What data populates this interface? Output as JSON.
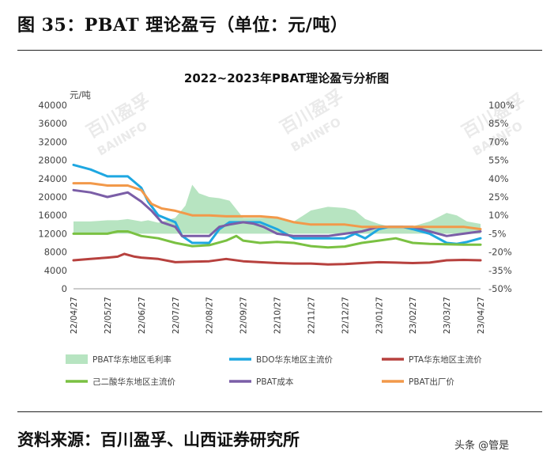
{
  "figure_title": "图 35：PBAT 理论盈亏（单位：元/吨）",
  "source": "资料来源：百川盈孚、山西证券研究所",
  "watermark_tag": "头条 @管是",
  "watermark_text": "百川盈孚",
  "watermark_text_en": "BAIINFO",
  "chart_data": {
    "type": "line",
    "title": "2022~2023年PBAT理论盈亏分析图",
    "ylabel_left": "元/吨",
    "ylim_left": [
      0,
      40000
    ],
    "yticks_left": [
      "0",
      "4000",
      "8000",
      "12000",
      "16000",
      "20000",
      "24000",
      "28000",
      "32000",
      "36000",
      "40000"
    ],
    "ylim_right": [
      -50,
      100
    ],
    "yticks_right": [
      "-50%",
      "-35%",
      "-20%",
      "-5%",
      "10%",
      "25%",
      "40%",
      "55%",
      "70%",
      "85%",
      "100%"
    ],
    "xticks": [
      "22/04/27",
      "22/05/27",
      "22/06/27",
      "22/07/27",
      "22/08/27",
      "22/09/27",
      "22/10/27",
      "22/11/27",
      "22/12/27",
      "23/01/27",
      "23/02/27",
      "23/03/27",
      "23/04/27"
    ],
    "x_range": [
      0,
      12
    ],
    "legend": [
      "PBAT华东地区毛利率",
      "BDO华东地区主流价",
      "PTA华东地区主流价",
      "己二酸华东地区主流价",
      "PBAT成本",
      "PBAT出厂价"
    ],
    "series": [
      {
        "name": "PBAT华东地区毛利率",
        "axis": "right",
        "kind": "area",
        "color": "#b7e4c1",
        "x": [
          0,
          0.5,
          1,
          1.3,
          1.6,
          2,
          2.2,
          2.5,
          3,
          3.3,
          3.5,
          3.7,
          4,
          4.3,
          4.6,
          5,
          5.5,
          6,
          6.5,
          7,
          7.5,
          8,
          8.3,
          8.6,
          9,
          9.3,
          9.7,
          10,
          10.5,
          11,
          11.3,
          11.6,
          12
        ],
        "values": [
          5,
          5,
          6,
          6,
          7,
          5,
          6,
          4,
          8,
          18,
          35,
          28,
          25,
          24,
          22,
          8,
          8,
          8,
          5,
          14,
          17,
          16,
          14,
          7,
          3,
          1,
          0,
          1,
          5,
          12,
          10,
          5,
          3
        ]
      },
      {
        "name": "BDO华东地区主流价",
        "axis": "left",
        "kind": "line",
        "color": "#1ea7e1",
        "x": [
          0,
          0.5,
          1,
          1.3,
          1.6,
          2,
          2.2,
          2.5,
          3,
          3.2,
          3.5,
          3.7,
          4,
          4.3,
          4.6,
          5,
          5.5,
          6,
          6.5,
          7,
          7.5,
          8,
          8.3,
          8.6,
          9,
          9.3,
          9.7,
          10,
          10.5,
          11,
          11.3,
          11.6,
          12
        ],
        "values": [
          27000,
          26000,
          24500,
          24500,
          24500,
          22000,
          19000,
          16000,
          14500,
          11500,
          10000,
          10000,
          10000,
          13000,
          14500,
          14500,
          14500,
          13000,
          11000,
          11000,
          11000,
          11000,
          12000,
          11000,
          13000,
          13500,
          13500,
          13000,
          12000,
          10000,
          9800,
          10200,
          11000
        ]
      },
      {
        "name": "PTA华东地区主流价",
        "axis": "left",
        "kind": "line",
        "color": "#b7413e",
        "x": [
          0,
          0.5,
          1,
          1.3,
          1.5,
          1.8,
          2,
          2.5,
          3,
          3.5,
          4,
          4.5,
          5,
          5.5,
          6,
          6.5,
          7,
          7.5,
          8,
          8.5,
          9,
          9.5,
          10,
          10.5,
          11,
          11.5,
          12
        ],
        "values": [
          6200,
          6500,
          6800,
          7000,
          7600,
          7000,
          6800,
          6500,
          5800,
          5900,
          6000,
          6500,
          6000,
          5800,
          5600,
          5500,
          5500,
          5300,
          5400,
          5600,
          5800,
          5700,
          5600,
          5700,
          6200,
          6300,
          6200
        ]
      },
      {
        "name": "己二酸华东地区主流价",
        "axis": "left",
        "kind": "line",
        "color": "#7ac142",
        "x": [
          0,
          0.5,
          1,
          1.3,
          1.6,
          2,
          2.5,
          3,
          3.5,
          4,
          4.5,
          4.8,
          5,
          5.5,
          6,
          6.5,
          7,
          7.5,
          8,
          8.5,
          9,
          9.5,
          10,
          10.5,
          11,
          11.5,
          12
        ],
        "values": [
          12000,
          12000,
          12000,
          12500,
          12500,
          11500,
          11000,
          10000,
          9300,
          9500,
          10500,
          11500,
          10500,
          10000,
          10200,
          10000,
          9300,
          9000,
          9200,
          10000,
          10500,
          11000,
          10000,
          9800,
          9700,
          9600,
          9600
        ]
      },
      {
        "name": "PBAT成本",
        "axis": "left",
        "kind": "line",
        "color": "#7b5ea7",
        "x": [
          0,
          0.5,
          1,
          1.3,
          1.6,
          2,
          2.3,
          2.6,
          3,
          3.2,
          3.5,
          4,
          4.3,
          4.6,
          5,
          5.3,
          5.6,
          6,
          6.5,
          7,
          7.5,
          8,
          8.5,
          9,
          9.5,
          10,
          10.5,
          11,
          11.5,
          12
        ],
        "values": [
          21500,
          21000,
          20000,
          20500,
          21000,
          19000,
          17000,
          14500,
          13500,
          11500,
          11500,
          11500,
          13500,
          14000,
          14500,
          14200,
          13500,
          12000,
          11500,
          11500,
          11500,
          12000,
          12500,
          13500,
          13500,
          13500,
          12500,
          11500,
          12000,
          12500
        ]
      },
      {
        "name": "PBAT出厂价",
        "axis": "left",
        "kind": "line",
        "color": "#f2994a",
        "x": [
          0,
          0.5,
          1,
          1.3,
          1.6,
          2,
          2.3,
          2.6,
          3,
          3.5,
          4,
          4.5,
          5,
          5.5,
          6,
          6.5,
          7,
          7.5,
          8,
          8.5,
          9,
          9.5,
          10,
          10.5,
          11,
          11.5,
          12
        ],
        "values": [
          23000,
          23000,
          22500,
          22500,
          22500,
          21500,
          18500,
          17500,
          17000,
          16000,
          16000,
          15800,
          15800,
          15800,
          15500,
          14500,
          14000,
          14000,
          14000,
          13500,
          13500,
          13500,
          13500,
          13500,
          13500,
          13500,
          13000
        ]
      }
    ]
  }
}
